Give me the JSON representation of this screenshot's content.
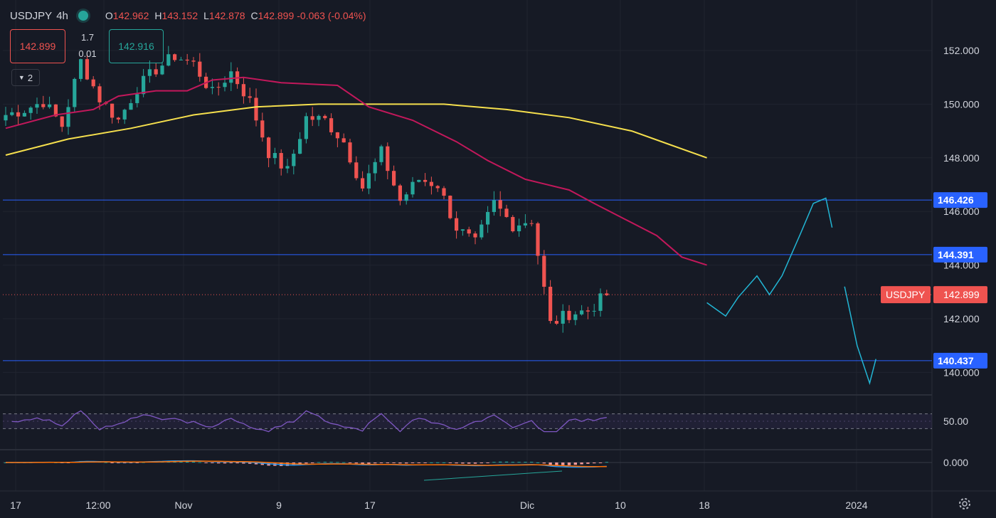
{
  "header": {
    "symbol": "USDJPY",
    "timeframe": "4h",
    "open_label": "O",
    "open": "142.962",
    "high_label": "H",
    "high": "143.152",
    "low_label": "L",
    "low": "142.878",
    "close_label": "C",
    "close": "142.899",
    "change": "-0.063 (-0.04%)",
    "status_color": "#26a69a"
  },
  "trade": {
    "sell_price": "142.899",
    "buy_price": "142.916",
    "spread": "1.7",
    "quantity": "0.01"
  },
  "indicators_toggle": {
    "count": "2"
  },
  "price_axis": {
    "ticks": [
      "152.000",
      "150.000",
      "148.000",
      "146.000",
      "144.000",
      "142.000",
      "140.000"
    ],
    "rsi_tick": "50.00",
    "macd_tick": "0.000"
  },
  "horizontal_lines": [
    {
      "price": "146.426"
    },
    {
      "price": "144.391"
    },
    {
      "price": "140.437"
    }
  ],
  "current_price": {
    "symbol": "USDJPY",
    "price": "142.899"
  },
  "time_axis": {
    "ticks": [
      "17",
      "12:00",
      "Nov",
      "9",
      "17",
      "Dic",
      "10",
      "18",
      "2024"
    ]
  },
  "colors": {
    "background": "#161a25",
    "bull": "#26a69a",
    "bear": "#ef5350",
    "sma_slow": "#f5df4d",
    "sma_fast": "#c2185b",
    "hline": "#2962ff",
    "rsi": "#7e57c2",
    "projection": "#22b5d4",
    "macd": "#2196f3",
    "signal": "#ff6d00"
  },
  "chart_data": {
    "type": "candlestick",
    "symbol": "USDJPY",
    "timeframe": "4h",
    "ylim": [
      139.5,
      153.0
    ],
    "anchor_prices": [
      149.6,
      149.8,
      150.1,
      149.2,
      151.6,
      150.2,
      149.4,
      150.6,
      151.3,
      151.8,
      151.5,
      150.4,
      151.2,
      150.1,
      148.2,
      147.5,
      149.5,
      149.4,
      148.6,
      146.9,
      148.2,
      146.4,
      147.2,
      147.0,
      145.4,
      144.8,
      146.3,
      145.5,
      145.7,
      141.8,
      142.2,
      142.3,
      142.9
    ],
    "sma_fast_pts": [
      [
        0,
        149.1
      ],
      [
        8,
        149.6
      ],
      [
        14,
        149.8
      ],
      [
        18,
        150.3
      ],
      [
        24,
        150.5
      ],
      [
        29,
        150.5
      ],
      [
        33,
        150.9
      ],
      [
        38,
        151.0
      ],
      [
        44,
        150.8
      ],
      [
        53,
        150.7
      ],
      [
        58,
        149.9
      ],
      [
        65,
        149.4
      ],
      [
        72,
        148.6
      ],
      [
        77,
        147.9
      ],
      [
        83,
        147.2
      ],
      [
        90,
        146.8
      ],
      [
        94,
        146.3
      ],
      [
        99,
        145.7
      ],
      [
        104,
        145.1
      ],
      [
        108,
        144.3
      ],
      [
        112,
        144.0
      ]
    ],
    "sma_slow_pts": [
      [
        0,
        148.1
      ],
      [
        10,
        148.7
      ],
      [
        20,
        149.1
      ],
      [
        30,
        149.6
      ],
      [
        40,
        149.9
      ],
      [
        50,
        150.0
      ],
      [
        60,
        150.0
      ],
      [
        70,
        150.0
      ],
      [
        80,
        149.8
      ],
      [
        90,
        149.5
      ],
      [
        100,
        149.0
      ],
      [
        106,
        148.5
      ],
      [
        112,
        148.0
      ]
    ],
    "projection_pts": [
      [
        112,
        142.6
      ],
      [
        115,
        142.1
      ],
      [
        117,
        142.8
      ],
      [
        120,
        143.6
      ],
      [
        122,
        142.9
      ],
      [
        124,
        143.6
      ],
      [
        127,
        145.2
      ],
      [
        129,
        146.3
      ],
      [
        131,
        146.5
      ],
      [
        132,
        145.4
      ]
    ],
    "projection2_pts": [
      [
        134,
        143.2
      ],
      [
        136,
        141.0
      ],
      [
        138,
        139.6
      ],
      [
        139,
        140.5
      ]
    ],
    "rsi": {
      "upper": 70,
      "lower": 30,
      "label": "50.00"
    },
    "macd": {
      "zero_label": "0.000"
    }
  }
}
